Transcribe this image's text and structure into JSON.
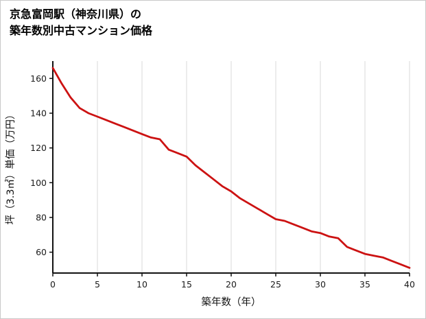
{
  "title": {
    "line1": "京急富岡駅（神奈川県）の",
    "line2": "築年数別中古マンション価格"
  },
  "chart_data": {
    "type": "line",
    "title": "京急富岡駅（神奈川県）の築年数別中古マンション価格",
    "xlabel": "築年数（年）",
    "ylabel": "坪（3.3㎡）単価（万円）",
    "x": [
      0,
      1,
      2,
      3,
      4,
      5,
      6,
      7,
      8,
      9,
      10,
      11,
      12,
      13,
      14,
      15,
      16,
      17,
      18,
      19,
      20,
      21,
      22,
      23,
      24,
      25,
      26,
      27,
      28,
      29,
      30,
      31,
      32,
      33,
      34,
      35,
      36,
      37,
      38,
      39,
      40
    ],
    "values": [
      166,
      157,
      149,
      143,
      140,
      138,
      136,
      134,
      132,
      130,
      128,
      126,
      125,
      119,
      117,
      115,
      110,
      106,
      102,
      98,
      95,
      91,
      88,
      85,
      82,
      79,
      78,
      76,
      74,
      72,
      71,
      69,
      68,
      63,
      61,
      59,
      58,
      57,
      55,
      53,
      51
    ],
    "xlim": [
      0,
      40
    ],
    "ylim": [
      48,
      170
    ],
    "xticks": [
      0,
      5,
      10,
      15,
      20,
      25,
      30,
      35,
      40
    ],
    "yticks": [
      60,
      80,
      100,
      120,
      140,
      160
    ],
    "grid": "vertical",
    "legend": "none",
    "line_color": "#cc1212",
    "grid_color": "#d9d9d9",
    "axis_color": "#111111",
    "tick_text_color": "#1a1a1a"
  }
}
